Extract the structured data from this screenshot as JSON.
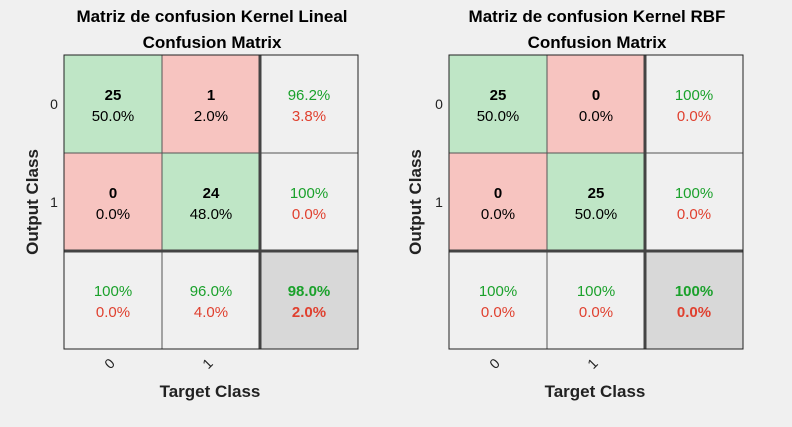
{
  "chart_data": [
    {
      "type": "heatmap",
      "title": "Matriz de confusion Kernel Lineal",
      "subtitle": "Confusion Matrix",
      "xlabel": "Target Class",
      "ylabel": "Output Class",
      "x_ticks": [
        "0",
        "1"
      ],
      "y_ticks": [
        "0",
        "1"
      ],
      "cells": [
        [
          {
            "count": "25",
            "pct": "50.0%"
          },
          {
            "count": "1",
            "pct": "2.0%"
          }
        ],
        [
          {
            "count": "0",
            "pct": "0.0%"
          },
          {
            "count": "24",
            "pct": "48.0%"
          }
        ]
      ],
      "row_summary": [
        {
          "correct": "96.2%",
          "wrong": "3.8%"
        },
        {
          "correct": "100%",
          "wrong": "0.0%"
        }
      ],
      "col_summary": [
        {
          "correct": "100%",
          "wrong": "0.0%"
        },
        {
          "correct": "96.0%",
          "wrong": "4.0%"
        }
      ],
      "overall": {
        "correct": "98.0%",
        "wrong": "2.0%"
      }
    },
    {
      "type": "heatmap",
      "title": "Matriz de confusion Kernel RBF",
      "subtitle": "Confusion Matrix",
      "xlabel": "Target Class",
      "ylabel": "Output Class",
      "x_ticks": [
        "0",
        "1"
      ],
      "y_ticks": [
        "0",
        "1"
      ],
      "cells": [
        [
          {
            "count": "25",
            "pct": "50.0%"
          },
          {
            "count": "0",
            "pct": "0.0%"
          }
        ],
        [
          {
            "count": "0",
            "pct": "0.0%"
          },
          {
            "count": "25",
            "pct": "50.0%"
          }
        ]
      ],
      "row_summary": [
        {
          "correct": "100%",
          "wrong": "0.0%"
        },
        {
          "correct": "100%",
          "wrong": "0.0%"
        }
      ],
      "col_summary": [
        {
          "correct": "100%",
          "wrong": "0.0%"
        },
        {
          "correct": "100%",
          "wrong": "0.0%"
        }
      ],
      "overall": {
        "correct": "100%",
        "wrong": "0.0%"
      }
    }
  ],
  "colors": {
    "background": "#f0f0f0",
    "correct_cell": "#bfe6c6",
    "wrong_cell": "#f7c4c0",
    "summary_cell": "#f0f0f0",
    "overall_cell": "#d8d8d8",
    "correct_text": "#1aa12b",
    "wrong_text": "#e0402f",
    "grid_line": "#555555",
    "thick_line": "#444444"
  }
}
